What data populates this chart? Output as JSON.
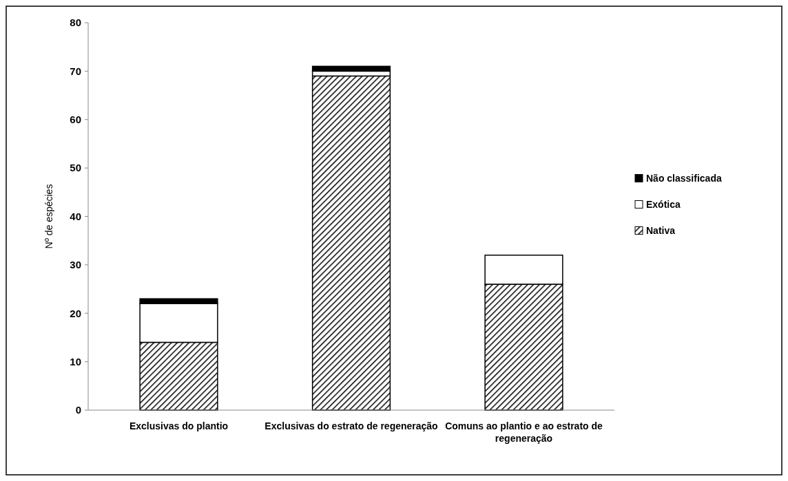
{
  "chart_data": {
    "type": "bar",
    "stacked": true,
    "ylabel": "Nº de espécies",
    "categories": [
      "Exclusivas do plantio",
      "Exclusivas do estrato de regeneração",
      "Comuns ao plantio e ao estrato de regeneração"
    ],
    "series": [
      {
        "name": "Nativa",
        "color": "#000000",
        "values": [
          14,
          69,
          26
        ]
      },
      {
        "name": "Exótica",
        "color": "#ffffff",
        "values": [
          8,
          1,
          6
        ]
      },
      {
        "name": "Não classificada",
        "color": "#000000",
        "values": [
          1,
          1,
          0
        ]
      }
    ],
    "ylim": [
      0,
      80
    ],
    "yticks": [
      0,
      10,
      20,
      30,
      40,
      50,
      60,
      70,
      80
    ],
    "grid": false,
    "legend": "right"
  }
}
